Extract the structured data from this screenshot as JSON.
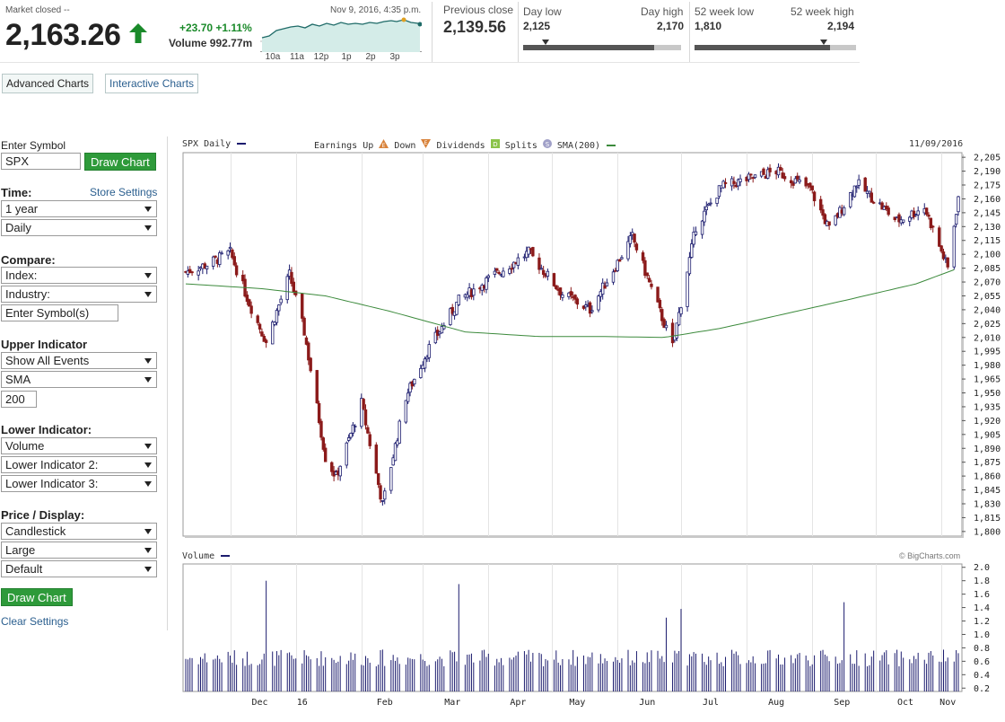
{
  "quote": {
    "status": "Market closed --",
    "price": "2,163.26",
    "change": "+23.70 +1.11%",
    "volume_label": "Volume",
    "volume": "992.77m",
    "time": "Nov 9, 2016, 4:35 p.m.",
    "hours": [
      "10a",
      "11a",
      "12p",
      "1p",
      "2p",
      "3p"
    ],
    "previous_close_label": "Previous close",
    "previous_close": "2,139.56",
    "day_low_label": "Day low",
    "day_low": "2,125",
    "day_high_label": "Day high",
    "day_high": "2,170",
    "day_range_position": 0.14,
    "week52_low_label": "52 week low",
    "week52_low": "1,810",
    "week52_high_label": "52 week high",
    "week52_high": "2,194",
    "week52_range_position": 0.84,
    "up_color": "#1a8a2a",
    "arrow_icon": "up-arrow-icon"
  },
  "chart_buttons": {
    "advanced": "Advanced Charts",
    "interactive": "Interactive Charts"
  },
  "settings": {
    "enter_symbol_label": "Enter Symbol",
    "symbol_value": "SPX",
    "draw_chart": "Draw Chart",
    "time_label": "Time:",
    "store_settings": "Store Settings",
    "time_period": "1 year",
    "frequency": "Daily",
    "compare_label": "Compare:",
    "compare_index": "Index:",
    "compare_industry": "Industry:",
    "compare_symbol_placeholder": "Enter Symbol(s)",
    "upper_indicator_label": "Upper Indicator",
    "upper_indicator_1": "Show All Events",
    "upper_indicator_2": "SMA",
    "upper_indicator_value": "200",
    "lower_indicator_label": "Lower Indicator:",
    "lower_indicator_1": "Volume",
    "lower_indicator_2": "Lower Indicator 2:",
    "lower_indicator_3": "Lower Indicator 3:",
    "price_display_label": "Price / Display:",
    "price_type": "Candlestick",
    "size": "Large",
    "style": "Default",
    "draw_chart_bottom": "Draw Chart",
    "clear_settings": "Clear Settings"
  },
  "legend": {
    "series": "SPX Daily",
    "earnings": "Earnings",
    "up": "Up",
    "down": "Down",
    "dividends": "Dividends",
    "splits": "Splits",
    "sma": "SMA(200)",
    "date": "11/09/2016",
    "volume": "Volume",
    "copyright": "© BigCharts.com"
  },
  "colors": {
    "up_candle": "#1c1c6e",
    "down_candle": "#8b1a1a",
    "sma": "#3c8a3c",
    "volume": "#1c1c6e"
  },
  "chart_data": [
    {
      "type": "candlestick",
      "title": "SPX Daily",
      "x_ticks": [
        "Dec",
        "16",
        "Feb",
        "Mar",
        "Apr",
        "May",
        "Jun",
        "Jul",
        "Aug",
        "Sep",
        "Oct",
        "Nov"
      ],
      "y_ticks": [
        2205,
        2190,
        2175,
        2160,
        2145,
        2130,
        2115,
        2100,
        2085,
        2070,
        2055,
        2040,
        2025,
        2010,
        1995,
        1980,
        1965,
        1950,
        1935,
        1920,
        1905,
        1890,
        1875,
        1860,
        1845,
        1830,
        1815,
        1800
      ],
      "ylim": [
        1795,
        2210
      ],
      "close_path": [
        [
          "2015-11-10",
          2081
        ],
        [
          "2015-11-20",
          2089
        ],
        [
          "2015-12-01",
          2102
        ],
        [
          "2015-12-10",
          2047
        ],
        [
          "2015-12-18",
          2005
        ],
        [
          "2015-12-29",
          2078
        ],
        [
          "2016-01-05",
          2016
        ],
        [
          "2016-01-15",
          1880
        ],
        [
          "2016-01-20",
          1859
        ],
        [
          "2016-02-01",
          1939
        ],
        [
          "2016-02-11",
          1829
        ],
        [
          "2016-02-22",
          1946
        ],
        [
          "2016-03-04",
          1999
        ],
        [
          "2016-03-18",
          2050
        ],
        [
          "2016-04-01",
          2073
        ],
        [
          "2016-04-20",
          2102
        ],
        [
          "2016-05-06",
          2057
        ],
        [
          "2016-05-19",
          2040
        ],
        [
          "2016-06-08",
          2119
        ],
        [
          "2016-06-27",
          2000
        ],
        [
          "2016-07-08",
          2130
        ],
        [
          "2016-07-20",
          2173
        ],
        [
          "2016-08-15",
          2190
        ],
        [
          "2016-08-31",
          2171
        ],
        [
          "2016-09-09",
          2127
        ],
        [
          "2016-09-22",
          2177
        ],
        [
          "2016-10-11",
          2136
        ],
        [
          "2016-10-24",
          2151
        ],
        [
          "2016-11-04",
          2085
        ],
        [
          "2016-11-09",
          2163
        ]
      ],
      "sma200_path": [
        [
          "2015-11-10",
          2068
        ],
        [
          "2015-12-15",
          2063
        ],
        [
          "2016-01-15",
          2055
        ],
        [
          "2016-02-15",
          2038
        ],
        [
          "2016-03-21",
          2016
        ],
        [
          "2016-04-25",
          2011
        ],
        [
          "2016-05-25",
          2011
        ],
        [
          "2016-06-23",
          2010
        ],
        [
          "2016-07-20",
          2020
        ],
        [
          "2016-08-22",
          2037
        ],
        [
          "2016-09-20",
          2052
        ],
        [
          "2016-10-20",
          2068
        ],
        [
          "2016-11-09",
          2085
        ]
      ]
    },
    {
      "type": "bar",
      "title": "Volume",
      "y_ticks": [
        2.0,
        1.8,
        1.6,
        1.4,
        1.2,
        1.0,
        0.8,
        0.6,
        0.4,
        0.2
      ],
      "ylim": [
        0.15,
        2.05
      ],
      "baseline": 0.65,
      "spikes": [
        [
          "2015-12-18",
          1.8
        ],
        [
          "2016-03-18",
          1.75
        ],
        [
          "2016-06-24",
          1.25
        ],
        [
          "2016-07-01",
          1.38
        ],
        [
          "2016-09-16",
          1.48
        ]
      ]
    }
  ]
}
